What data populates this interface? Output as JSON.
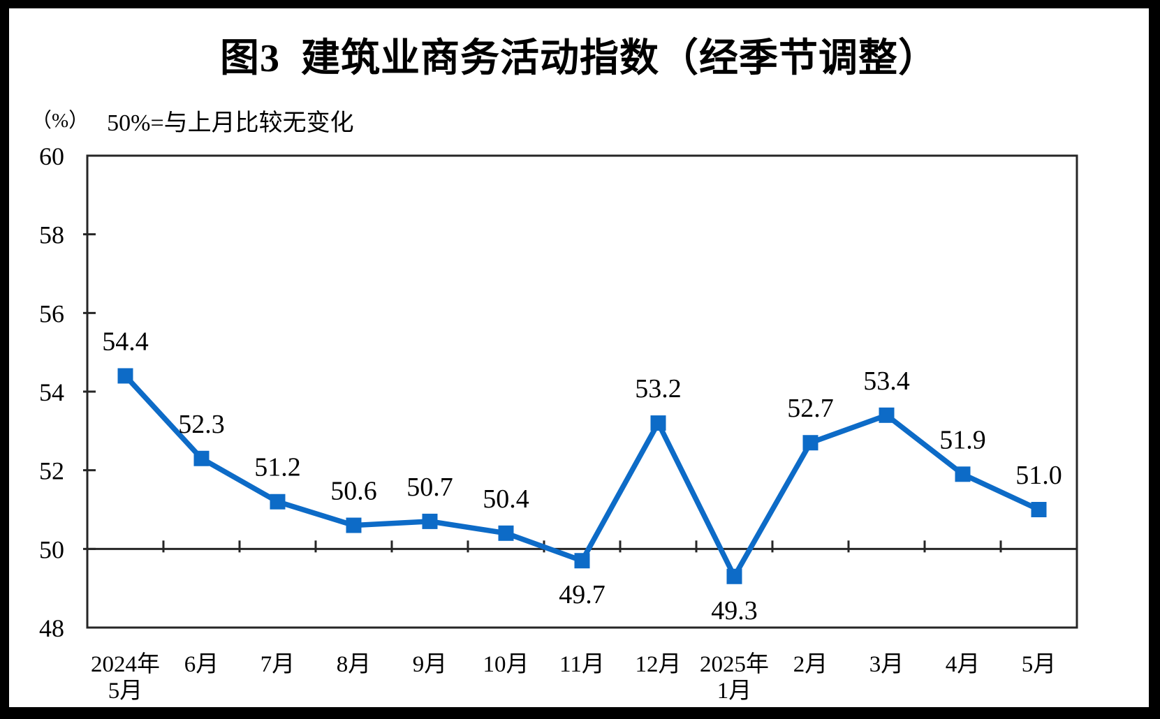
{
  "title": "图3  建筑业商务活动指数（经季节调整）",
  "subtitle": {
    "unit_label": "（%）",
    "reference_note": "50%=与上月比较无变化"
  },
  "chart_data": {
    "type": "line",
    "title": "图3  建筑业商务活动指数（经季节调整）",
    "series_name": "建筑业商务活动指数",
    "categories": [
      [
        "2024年",
        "5月"
      ],
      [
        "6月"
      ],
      [
        "7月"
      ],
      [
        "8月"
      ],
      [
        "9月"
      ],
      [
        "10月"
      ],
      [
        "11月"
      ],
      [
        "12月"
      ],
      [
        "2025年",
        "1月"
      ],
      [
        "2月"
      ],
      [
        "3月"
      ],
      [
        "4月"
      ],
      [
        "5月"
      ]
    ],
    "values": [
      54.4,
      52.3,
      51.2,
      50.6,
      50.7,
      50.4,
      49.7,
      53.2,
      49.3,
      52.7,
      53.4,
      51.9,
      51.0
    ],
    "data_labels": [
      "54.4",
      "52.3",
      "51.2",
      "50.6",
      "50.7",
      "50.4",
      "49.7",
      "53.2",
      "49.3",
      "52.7",
      "53.4",
      "51.9",
      "51.0"
    ],
    "label_positions": [
      "above",
      "above",
      "above",
      "above",
      "above",
      "above",
      "below",
      "above",
      "below",
      "above",
      "above",
      "above",
      "above"
    ],
    "ylim": [
      48,
      60
    ],
    "yticks": [
      48,
      50,
      52,
      54,
      56,
      58,
      60
    ],
    "reference_line": 50,
    "grid": false,
    "legend": "none",
    "marker": "square",
    "line_color": "#0d6bc7",
    "axis_color": "#262626",
    "text_color": "#000000"
  }
}
